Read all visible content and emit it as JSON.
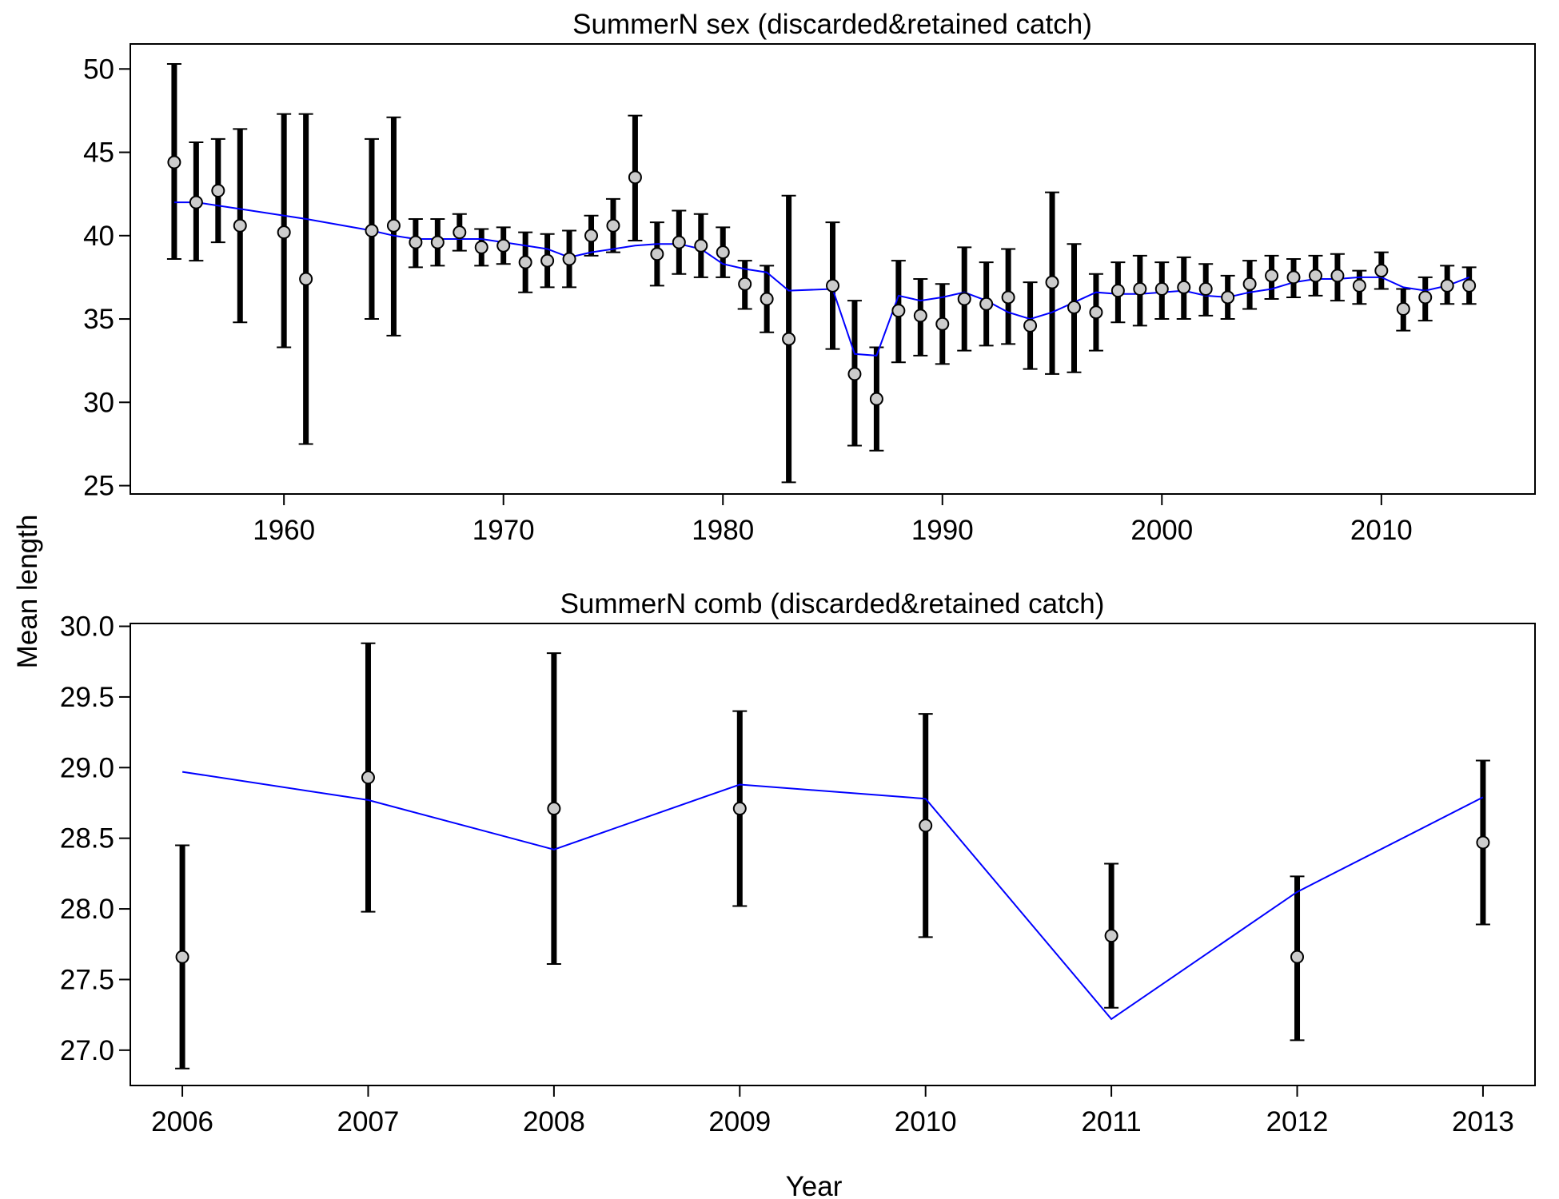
{
  "shared": {
    "xlabel": "Year",
    "ylabel": "Mean length"
  },
  "colors": {
    "fit_line": "#0000ff",
    "error_bar": "#000000",
    "point_fill": "#cccccc",
    "point_stroke": "#000000",
    "frame": "#000000"
  },
  "chart_data": [
    {
      "type": "scatter",
      "title": "SummerN sex (discarded&retained catch)",
      "xlim": [
        1953.0,
        2017.0
      ],
      "ylim": [
        24.5,
        51.5
      ],
      "x_ticks": [
        1960,
        1970,
        1980,
        1990,
        2000,
        2010
      ],
      "y_ticks": [
        25,
        30,
        35,
        40,
        45,
        50
      ],
      "series": [
        {
          "kind": "observed",
          "x": [
            1955,
            1956,
            1957,
            1958,
            1960,
            1961,
            1964,
            1965,
            1966,
            1967,
            1968,
            1969,
            1970,
            1971,
            1972,
            1973,
            1974,
            1975,
            1976,
            1977,
            1978,
            1979,
            1980,
            1981,
            1982,
            1983,
            1985,
            1986,
            1987,
            1988,
            1989,
            1990,
            1991,
            1992,
            1993,
            1994,
            1995,
            1996,
            1997,
            1998,
            1999,
            2000,
            2001,
            2002,
            2003,
            2004,
            2005,
            2006,
            2007,
            2008,
            2009,
            2010,
            2011,
            2012,
            2013,
            2014
          ],
          "y": [
            44.4,
            42.0,
            42.7,
            40.6,
            40.2,
            37.4,
            40.3,
            40.6,
            39.6,
            39.6,
            40.2,
            39.3,
            39.4,
            38.4,
            38.5,
            38.6,
            40.0,
            40.6,
            43.5,
            38.9,
            39.6,
            39.4,
            39.0,
            37.1,
            36.2,
            33.8,
            37.0,
            31.7,
            30.2,
            35.5,
            35.2,
            34.7,
            36.2,
            35.9,
            36.3,
            34.6,
            37.2,
            35.7,
            35.4,
            36.7,
            36.8,
            36.8,
            36.9,
            36.8,
            36.3,
            37.1,
            37.6,
            37.5,
            37.6,
            37.6,
            37.0,
            37.9,
            35.6,
            36.3,
            37.0,
            37.0
          ],
          "lower": [
            38.6,
            38.5,
            39.6,
            34.8,
            33.3,
            27.5,
            35.0,
            34.0,
            38.1,
            38.2,
            39.1,
            38.2,
            38.3,
            36.6,
            36.9,
            36.9,
            38.8,
            39.0,
            39.7,
            37.0,
            37.7,
            37.5,
            37.5,
            35.6,
            34.2,
            25.2,
            33.2,
            27.4,
            27.1,
            32.4,
            32.8,
            32.3,
            33.1,
            33.4,
            33.5,
            32.0,
            31.7,
            31.8,
            33.1,
            34.8,
            34.6,
            35.0,
            35.0,
            35.2,
            35.0,
            35.6,
            36.2,
            36.3,
            36.4,
            36.1,
            35.9,
            36.8,
            34.3,
            34.9,
            35.9,
            35.9
          ],
          "upper": [
            50.3,
            45.6,
            45.8,
            46.4,
            47.3,
            47.3,
            45.8,
            47.1,
            41.0,
            41.0,
            41.3,
            40.4,
            40.5,
            40.2,
            40.1,
            40.3,
            41.2,
            42.2,
            47.2,
            40.8,
            41.5,
            41.3,
            40.5,
            38.5,
            38.2,
            42.4,
            40.8,
            36.1,
            33.3,
            38.5,
            37.4,
            37.1,
            39.3,
            38.4,
            39.2,
            37.2,
            42.6,
            39.5,
            37.7,
            38.4,
            38.8,
            38.4,
            38.7,
            38.3,
            37.6,
            38.5,
            38.8,
            38.6,
            38.8,
            38.9,
            37.9,
            39.0,
            36.8,
            37.5,
            38.2,
            38.1
          ]
        },
        {
          "kind": "expected",
          "x": [
            1955,
            1956,
            1957,
            1958,
            1960,
            1961,
            1964,
            1965,
            1966,
            1967,
            1968,
            1969,
            1970,
            1971,
            1972,
            1973,
            1974,
            1975,
            1976,
            1977,
            1978,
            1979,
            1980,
            1981,
            1982,
            1983,
            1985,
            1986,
            1987,
            1988,
            1989,
            1990,
            1991,
            1992,
            1993,
            1994,
            1995,
            1996,
            1997,
            1998,
            1999,
            2000,
            2001,
            2002,
            2003,
            2004,
            2005,
            2006,
            2007,
            2008,
            2009,
            2010,
            2011,
            2012,
            2013,
            2014
          ],
          "y": [
            42.0,
            42.0,
            41.8,
            41.6,
            41.2,
            41.0,
            40.3,
            40.0,
            39.8,
            39.8,
            39.8,
            39.8,
            39.6,
            39.4,
            39.2,
            38.7,
            39.0,
            39.2,
            39.4,
            39.5,
            39.5,
            39.2,
            38.3,
            38.0,
            37.8,
            36.7,
            36.8,
            32.9,
            32.8,
            36.4,
            36.1,
            36.3,
            36.6,
            36.1,
            35.4,
            35.0,
            35.4,
            36.0,
            36.6,
            36.5,
            36.5,
            36.6,
            36.7,
            36.4,
            36.3,
            36.6,
            36.8,
            37.2,
            37.4,
            37.4,
            37.5,
            37.5,
            36.9,
            36.7,
            37.0,
            37.5
          ]
        }
      ]
    },
    {
      "type": "scatter",
      "title": "SummerN comb (discarded&retained catch)",
      "xlim": [
        2005.72,
        2013.28
      ],
      "ylim": [
        26.75,
        30.02
      ],
      "x_ticks": [
        2006,
        2007,
        2008,
        2009,
        2010,
        2011,
        2012,
        2013
      ],
      "y_ticks": [
        "27.0",
        "27.5",
        "28.0",
        "28.5",
        "29.0",
        "29.5",
        "30.0"
      ],
      "series": [
        {
          "kind": "observed",
          "x": [
            2006,
            2007,
            2008,
            2009,
            2010,
            2011,
            2012,
            2013
          ],
          "y": [
            27.66,
            28.93,
            28.71,
            28.71,
            28.59,
            27.81,
            27.66,
            28.47
          ],
          "lower": [
            26.87,
            27.98,
            27.61,
            28.02,
            27.8,
            27.3,
            27.07,
            27.89
          ],
          "upper": [
            28.45,
            29.88,
            29.81,
            29.4,
            29.38,
            28.32,
            28.23,
            29.05
          ]
        },
        {
          "kind": "expected",
          "x": [
            2006,
            2007,
            2008,
            2009,
            2010,
            2011,
            2012,
            2013
          ],
          "y": [
            28.97,
            28.77,
            28.42,
            28.88,
            28.78,
            27.22,
            28.12,
            28.79
          ]
        }
      ]
    }
  ]
}
